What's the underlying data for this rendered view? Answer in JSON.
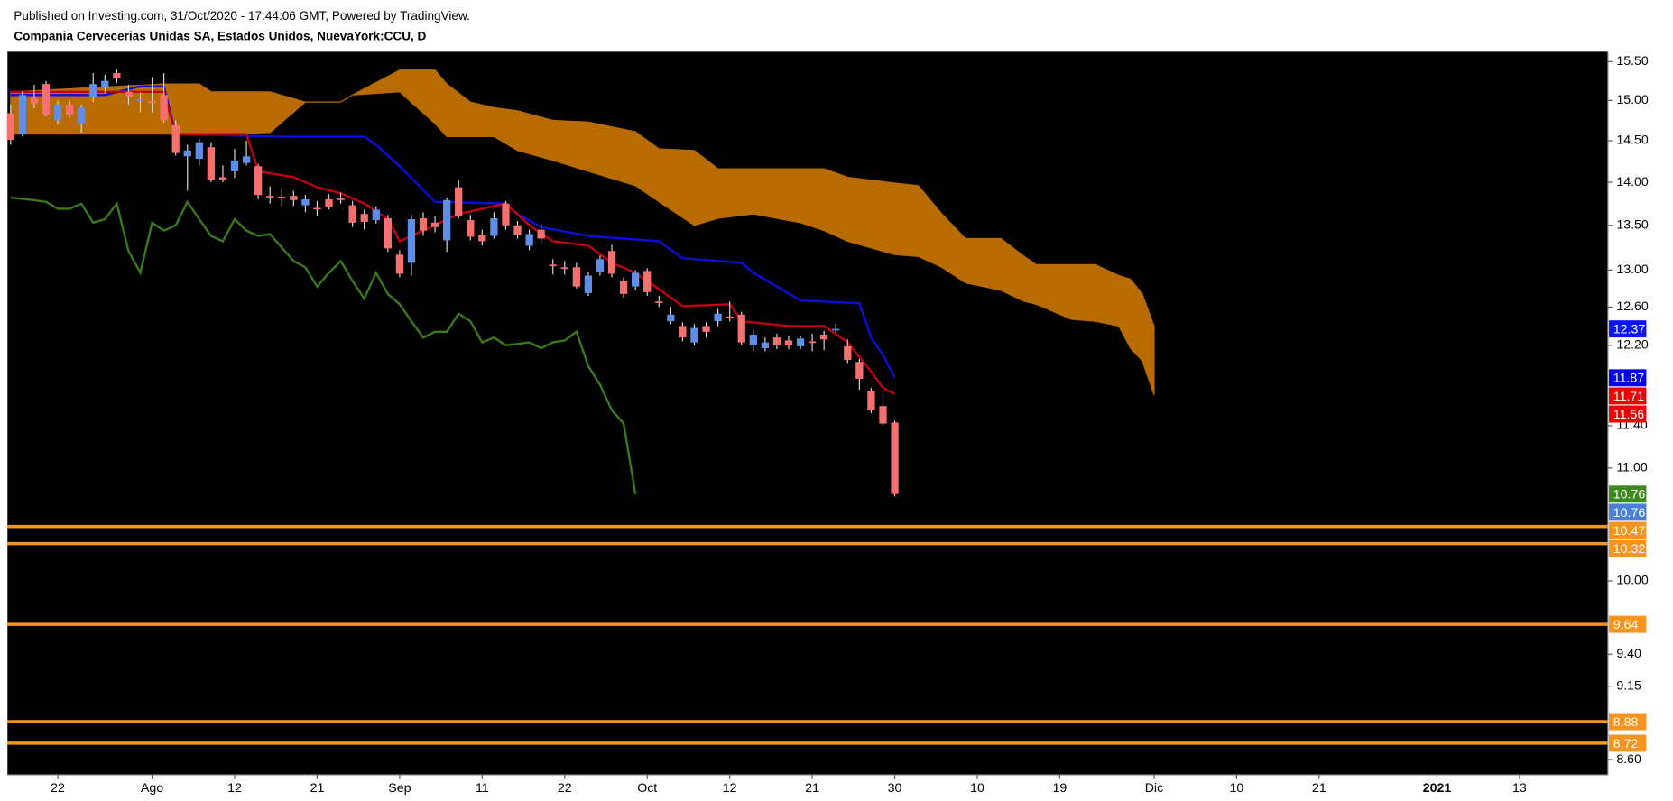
{
  "chart_data": {
    "type": "candlestick",
    "subtitle": "Published on Investing.com, 31/Oct/2020 - 17:44:06 GMT, Powered by TradingView.",
    "title": "Compania Cervecerias Unidas SA, Estados Unidos, NuevaYork:CCU, D",
    "log_scale": true,
    "ylim": [
      8.49,
      15.63
    ],
    "yticks": [
      {
        "value": 15.5,
        "label": "15.50"
      },
      {
        "value": 15,
        "label": "15.00"
      },
      {
        "value": 14.5,
        "label": "14.50"
      },
      {
        "value": 14,
        "label": "14.00"
      },
      {
        "value": 13.5,
        "label": "13.50"
      },
      {
        "value": 13,
        "label": "13.00"
      },
      {
        "value": 12.6,
        "label": "12.60"
      },
      {
        "value": 12.2,
        "label": "12.20"
      },
      {
        "value": 11.4,
        "label": "11.40"
      },
      {
        "value": 11,
        "label": "11.00"
      },
      {
        "value": 10,
        "label": "10.00"
      },
      {
        "value": 9.4,
        "label": "9.40"
      },
      {
        "value": 9.15,
        "label": "9.15"
      },
      {
        "value": 8.6,
        "label": "8.60"
      }
    ],
    "xlim": [
      -0.27,
      135.5
    ],
    "xticks": [
      {
        "value": 4,
        "label": "22"
      },
      {
        "value": 12,
        "label": "Ago"
      },
      {
        "value": 19,
        "label": "12"
      },
      {
        "value": 26,
        "label": "21"
      },
      {
        "value": 33,
        "label": "Sep"
      },
      {
        "value": 40,
        "label": "11"
      },
      {
        "value": 47,
        "label": "22"
      },
      {
        "value": 54,
        "label": "Oct"
      },
      {
        "value": 61,
        "label": "12"
      },
      {
        "value": 68,
        "label": "21"
      },
      {
        "value": 75,
        "label": "30"
      },
      {
        "value": 82,
        "label": "10"
      },
      {
        "value": 89,
        "label": "19"
      },
      {
        "value": 97,
        "label": "Dic"
      },
      {
        "value": 104,
        "label": "10"
      },
      {
        "value": 111,
        "label": "21"
      },
      {
        "value": 121,
        "label": "2021"
      },
      {
        "value": 128,
        "label": "13"
      }
    ],
    "candles": {
      "up_color": "#5f8ee8",
      "down_color": "#f77070",
      "wick_color": "#d8d8d8",
      "x": [
        0,
        1,
        2,
        3,
        4,
        5,
        6,
        7,
        8,
        9,
        10,
        11,
        12,
        13,
        14,
        15,
        16,
        17,
        18,
        19,
        20,
        21,
        22,
        23,
        24,
        25,
        26,
        27,
        28,
        29,
        30,
        31,
        32,
        33,
        34,
        35,
        36,
        37,
        38,
        39,
        40,
        41,
        42,
        43,
        44,
        45,
        46,
        47,
        48,
        49,
        50,
        51,
        52,
        53,
        54,
        55,
        56,
        57,
        58,
        59,
        60,
        61,
        62,
        63,
        64,
        65,
        66,
        67,
        68,
        69,
        70,
        71,
        72,
        73,
        74,
        75
      ],
      "open": [
        14.84,
        14.58,
        15.03,
        15.21,
        14.75,
        14.95,
        14.71,
        15.05,
        15.16,
        15.35,
        15.11,
        15.0,
        14.99,
        15.07,
        14.69,
        14.31,
        14.28,
        14.42,
        14.06,
        14.13,
        14.23,
        14.19,
        13.84,
        13.83,
        13.84,
        13.73,
        13.7,
        13.8,
        13.81,
        13.73,
        13.63,
        13.56,
        13.58,
        13.17,
        13.08,
        13.58,
        13.53,
        13.33,
        13.94,
        13.56,
        13.39,
        13.38,
        13.75,
        13.5,
        13.27,
        13.45,
        13.06,
        13.03,
        13.03,
        12.75,
        12.98,
        13.21,
        12.88,
        12.82,
        12.99,
        12.66,
        12.45,
        12.4,
        12.23,
        12.4,
        12.45,
        12.5,
        12.52,
        12.2,
        12.17,
        12.28,
        12.25,
        12.19,
        12.24,
        12.31,
        12.36,
        12.19,
        12.03,
        11.74,
        11.59,
        11.43
      ],
      "high": [
        14.95,
        15.12,
        15.2,
        15.25,
        15.0,
        15.0,
        14.95,
        15.35,
        15.33,
        15.4,
        15.2,
        15.1,
        15.3,
        15.35,
        14.75,
        14.45,
        14.52,
        14.48,
        14.2,
        14.4,
        14.5,
        14.22,
        13.95,
        13.93,
        13.9,
        13.85,
        13.78,
        13.86,
        13.88,
        13.78,
        13.68,
        13.72,
        13.62,
        13.22,
        13.62,
        13.65,
        13.6,
        13.82,
        14.02,
        13.62,
        13.45,
        13.65,
        13.78,
        13.55,
        13.45,
        13.52,
        13.12,
        13.1,
        13.08,
        12.98,
        13.16,
        13.28,
        12.92,
        13.0,
        13.02,
        12.72,
        12.6,
        12.44,
        12.42,
        12.44,
        12.58,
        12.66,
        12.55,
        12.36,
        12.28,
        12.32,
        12.3,
        12.3,
        12.32,
        12.35,
        12.42,
        12.26,
        12.06,
        11.77,
        11.74,
        11.45
      ],
      "low": [
        14.45,
        14.55,
        14.9,
        14.8,
        14.7,
        14.78,
        14.6,
        14.98,
        15.1,
        15.22,
        14.95,
        14.85,
        14.85,
        14.72,
        14.32,
        13.9,
        14.2,
        14.0,
        14.0,
        14.05,
        14.2,
        13.8,
        13.75,
        13.72,
        13.72,
        13.65,
        13.6,
        13.68,
        13.75,
        13.48,
        13.45,
        13.52,
        13.2,
        12.92,
        12.94,
        13.38,
        13.42,
        13.2,
        13.58,
        13.33,
        13.27,
        13.35,
        13.45,
        13.35,
        13.22,
        13.3,
        12.95,
        12.95,
        12.8,
        12.72,
        12.94,
        12.92,
        12.7,
        12.78,
        12.72,
        12.6,
        12.42,
        12.24,
        12.2,
        12.28,
        12.4,
        12.45,
        12.2,
        12.14,
        12.14,
        12.16,
        12.16,
        12.16,
        12.14,
        12.15,
        12.33,
        12.02,
        11.75,
        11.52,
        11.4,
        10.74
      ],
      "close": [
        14.51,
        15.07,
        14.96,
        14.82,
        14.95,
        14.82,
        14.91,
        15.21,
        15.25,
        15.28,
        15.05,
        15.01,
        14.98,
        14.75,
        14.35,
        14.38,
        14.48,
        14.03,
        14.03,
        14.26,
        14.31,
        13.85,
        13.83,
        13.82,
        13.79,
        13.8,
        13.69,
        13.71,
        13.8,
        13.53,
        13.54,
        13.68,
        13.24,
        12.96,
        13.57,
        13.44,
        13.48,
        13.79,
        13.6,
        13.37,
        13.32,
        13.58,
        13.5,
        13.39,
        13.4,
        13.35,
        13.05,
        13.02,
        12.82,
        12.94,
        13.12,
        12.96,
        12.74,
        12.97,
        12.76,
        12.65,
        12.52,
        12.28,
        12.38,
        12.34,
        12.53,
        12.49,
        12.23,
        12.31,
        12.23,
        12.2,
        12.2,
        12.27,
        12.23,
        12.26,
        12.37,
        12.05,
        11.86,
        11.55,
        11.42,
        10.76
      ]
    },
    "cloud": {
      "color": "#b86b00",
      "x": [
        0,
        13,
        16,
        17,
        22,
        25,
        28,
        29,
        33,
        36,
        37,
        39,
        41,
        43,
        46,
        49,
        53,
        55,
        58,
        60,
        63,
        67,
        69,
        71,
        75,
        77,
        79,
        81,
        84,
        86,
        87,
        90,
        92,
        94,
        95,
        96,
        97
      ],
      "upper": [
        15.11,
        15.21,
        15.21,
        15.11,
        15.11,
        14.98,
        14.98,
        15.07,
        15.39,
        15.39,
        15.21,
        14.98,
        14.91,
        14.87,
        14.75,
        14.73,
        14.61,
        14.4,
        14.38,
        14.16,
        14.16,
        14.16,
        14.16,
        14.06,
        13.99,
        13.96,
        13.63,
        13.35,
        13.35,
        13.15,
        13.06,
        13.06,
        13.06,
        12.94,
        12.9,
        12.74,
        12.4
      ],
      "lower": [
        14.58,
        14.58,
        14.58,
        14.58,
        14.6,
        14.98,
        14.98,
        15.07,
        15.11,
        14.71,
        14.55,
        14.55,
        14.55,
        14.38,
        14.26,
        14.13,
        13.96,
        13.77,
        13.5,
        13.58,
        13.63,
        13.53,
        13.44,
        13.32,
        13.17,
        13.15,
        13.03,
        12.86,
        12.78,
        12.66,
        12.63,
        12.47,
        12.45,
        12.4,
        12.17,
        12.04,
        11.7
      ]
    },
    "lines": [
      {
        "color": "#0a10d8",
        "x": [
          0,
          8,
          11,
          13,
          14,
          23,
          30,
          31,
          33,
          36,
          42,
          43,
          45,
          49,
          55,
          57,
          62,
          63,
          65,
          67,
          72,
          73,
          74,
          75
        ],
        "values": [
          15.07,
          15.07,
          15.18,
          15.18,
          14.58,
          14.55,
          14.55,
          14.45,
          14.19,
          13.77,
          13.75,
          13.63,
          13.48,
          13.38,
          13.32,
          13.13,
          13.08,
          12.97,
          12.82,
          12.67,
          12.64,
          12.28,
          12.1,
          11.87
        ]
      },
      {
        "color": "#c00010",
        "x": [
          0,
          13,
          14,
          20,
          21,
          24,
          26,
          28,
          30,
          32,
          33,
          35,
          38,
          40,
          42,
          44,
          46,
          49,
          51,
          53,
          55,
          57,
          61,
          62,
          66,
          69,
          71,
          73,
          74,
          75
        ],
        "values": [
          15.11,
          15.11,
          14.58,
          14.58,
          14.13,
          14.06,
          13.94,
          13.87,
          13.75,
          13.57,
          13.32,
          13.44,
          13.63,
          13.69,
          13.75,
          13.5,
          13.32,
          13.27,
          13.08,
          12.97,
          12.79,
          12.61,
          12.63,
          12.45,
          12.4,
          12.4,
          12.23,
          11.93,
          11.77,
          11.71
        ]
      },
      {
        "color": "#3a7a1a",
        "x": [
          0,
          2,
          3,
          4,
          5,
          6,
          7,
          8,
          9,
          10,
          11,
          12,
          13,
          14,
          15,
          16,
          17,
          18,
          19,
          20,
          21,
          22,
          24,
          25,
          26,
          27,
          28,
          29,
          30,
          31,
          32,
          33,
          34,
          35,
          36,
          37,
          38,
          39,
          40,
          41,
          42,
          44,
          45,
          46,
          47,
          48,
          49,
          50,
          51,
          52,
          53
        ],
        "values": [
          13.82,
          13.79,
          13.77,
          13.69,
          13.69,
          13.75,
          13.53,
          13.57,
          13.75,
          13.21,
          12.97,
          13.53,
          13.44,
          13.5,
          13.77,
          13.57,
          13.38,
          13.32,
          13.57,
          13.44,
          13.38,
          13.4,
          13.1,
          13.03,
          12.82,
          12.97,
          13.1,
          12.88,
          12.69,
          12.97,
          12.74,
          12.63,
          12.45,
          12.28,
          12.34,
          12.34,
          12.53,
          12.45,
          12.23,
          12.28,
          12.2,
          12.23,
          12.17,
          12.23,
          12.25,
          12.34,
          11.99,
          11.8,
          11.55,
          11.42,
          10.76
        ]
      }
    ],
    "levels": [
      {
        "value": 10.47,
        "color": "#f7941d"
      },
      {
        "value": 10.32,
        "color": "#f7941d"
      },
      {
        "value": 9.64,
        "color": "#f7941d"
      },
      {
        "value": 8.88,
        "color": "#f7941d"
      },
      {
        "value": 8.72,
        "color": "#f7941d"
      }
    ],
    "price_tags": [
      {
        "value": 12.37,
        "color": "#0a14ff"
      },
      {
        "value": 11.87,
        "color": "#0000ee"
      },
      {
        "value": 11.71,
        "color": "#ee0000"
      },
      {
        "value": 11.56,
        "color": "#ee0000"
      },
      {
        "value": 10.76,
        "color": "#3c8a1e"
      },
      {
        "value": 10.76,
        "color": "#4a80d8"
      }
    ]
  }
}
